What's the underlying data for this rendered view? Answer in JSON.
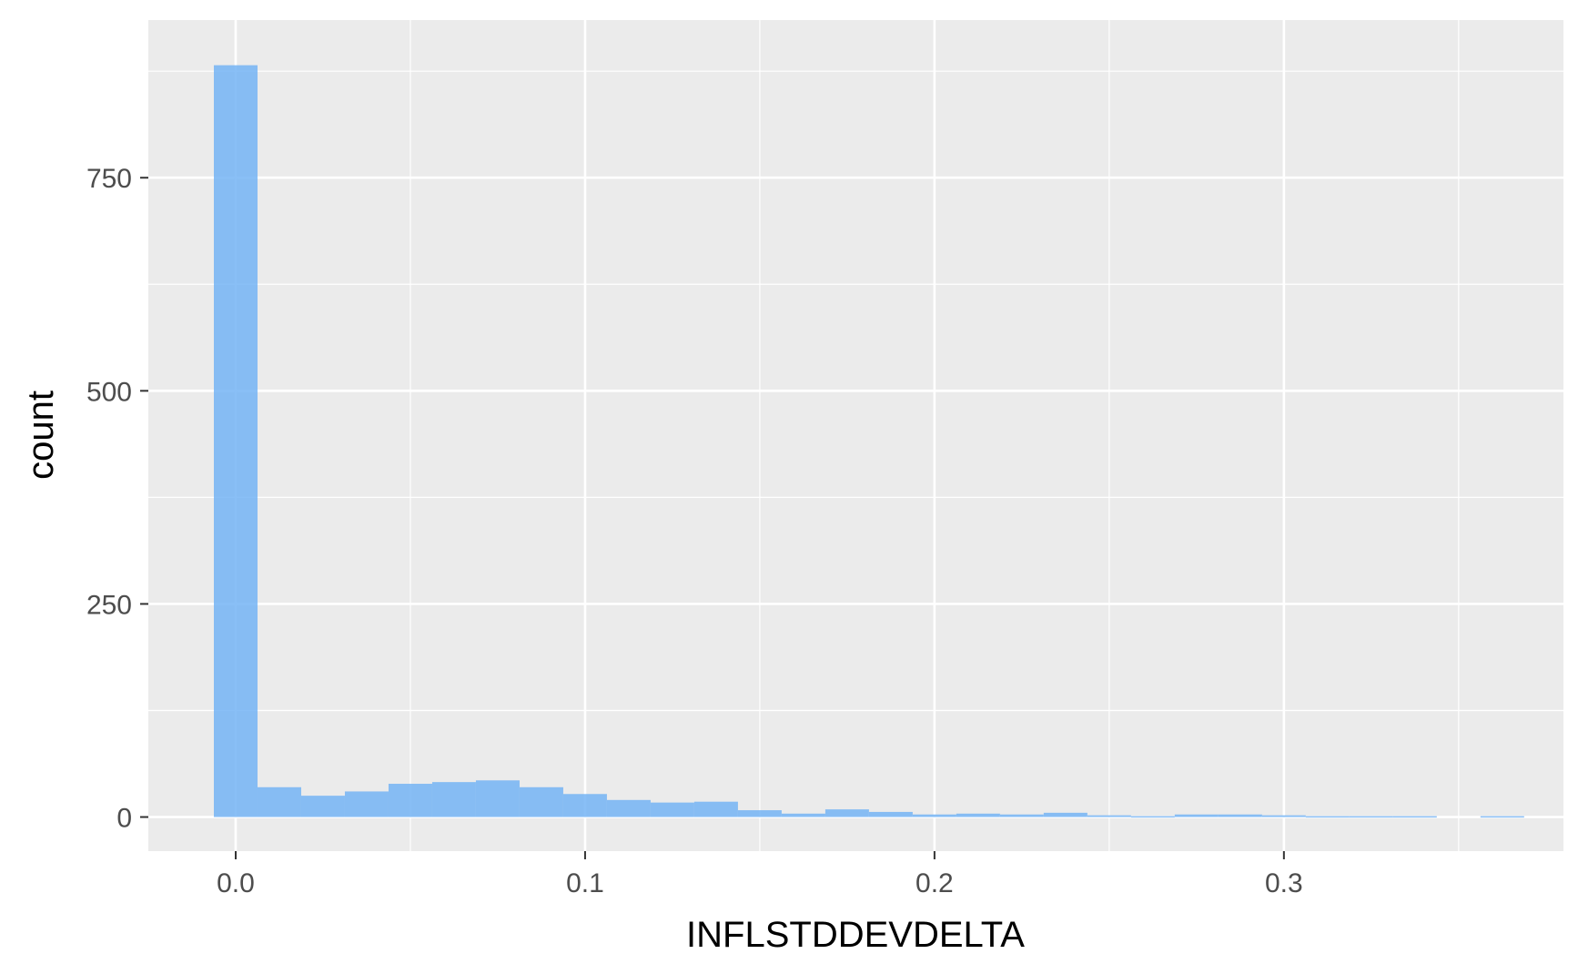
{
  "chart_data": {
    "type": "bar",
    "title": "",
    "xlabel": "INFLSTDDEVDELTA",
    "ylabel": "count",
    "xlim": [
      -0.025,
      0.38
    ],
    "ylim": [
      -40,
      935
    ],
    "x_ticks": [
      0.0,
      0.1,
      0.2,
      0.3
    ],
    "x_tick_labels": [
      "0.0",
      "0.1",
      "0.2",
      "0.3"
    ],
    "x_minor_ticks": [
      0.05,
      0.15,
      0.25,
      0.35
    ],
    "y_ticks": [
      0,
      250,
      500,
      750
    ],
    "y_tick_labels": [
      "0",
      "250",
      "500",
      "750"
    ],
    "y_minor_ticks": [
      125,
      375,
      625,
      875
    ],
    "bin_width": 0.0125,
    "bin_start": -0.00625,
    "values": [
      882,
      35,
      25,
      30,
      39,
      41,
      43,
      35,
      27,
      20,
      17,
      18,
      8,
      4,
      9,
      6,
      3,
      4,
      3,
      5,
      2,
      1,
      3,
      3,
      2,
      1,
      1,
      1,
      0,
      1
    ],
    "grid": true,
    "fill_color": "#74b4f5",
    "panel_color": "#ebebeb",
    "grid_color": "#ffffff"
  }
}
